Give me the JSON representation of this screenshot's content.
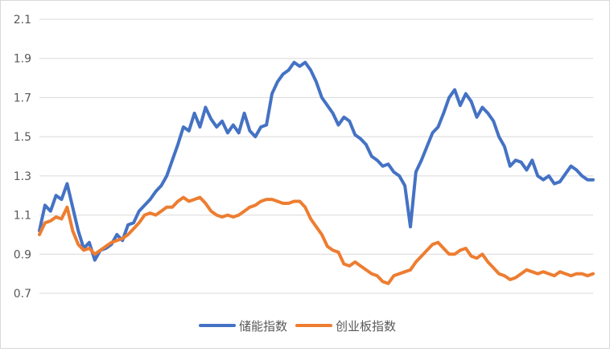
{
  "chart_data": {
    "type": "line",
    "title": "",
    "xlabel": "",
    "ylabel": "",
    "ylim": [
      0.7,
      2.1
    ],
    "yticks": [
      "0.7",
      "0.9",
      "1.1",
      "1.3",
      "1.5",
      "1.7",
      "1.9",
      "2.1"
    ],
    "grid": true,
    "legend_position": "bottom",
    "x": [
      0,
      1,
      2,
      3,
      4,
      5,
      6,
      7,
      8,
      9,
      10,
      11,
      12,
      13,
      14,
      15,
      16,
      17,
      18,
      19,
      20,
      21,
      22,
      23,
      24,
      25,
      26,
      27,
      28,
      29,
      30,
      31,
      32,
      33,
      34,
      35,
      36,
      37,
      38,
      39,
      40,
      41,
      42,
      43,
      44,
      45,
      46,
      47,
      48,
      49,
      50,
      51,
      52,
      53,
      54,
      55,
      56,
      57,
      58,
      59,
      60,
      61,
      62,
      63,
      64,
      65,
      66,
      67,
      68,
      69,
      70,
      71,
      72,
      73,
      74,
      75,
      76,
      77,
      78,
      79,
      80,
      81,
      82,
      83,
      84,
      85,
      86,
      87,
      88,
      89,
      90,
      91,
      92,
      93,
      94,
      95,
      96,
      97,
      98,
      99,
      100
    ],
    "series": [
      {
        "name": "储能指数",
        "color": "#4472c4",
        "values": [
          1.02,
          1.15,
          1.12,
          1.2,
          1.18,
          1.26,
          1.14,
          1.02,
          0.93,
          0.96,
          0.87,
          0.92,
          0.93,
          0.95,
          1.0,
          0.97,
          1.05,
          1.06,
          1.12,
          1.15,
          1.18,
          1.22,
          1.25,
          1.3,
          1.38,
          1.46,
          1.55,
          1.53,
          1.62,
          1.55,
          1.65,
          1.59,
          1.55,
          1.58,
          1.52,
          1.56,
          1.52,
          1.62,
          1.53,
          1.5,
          1.55,
          1.56,
          1.72,
          1.78,
          1.82,
          1.84,
          1.88,
          1.86,
          1.88,
          1.84,
          1.78,
          1.7,
          1.66,
          1.62,
          1.56,
          1.6,
          1.58,
          1.51,
          1.49,
          1.46,
          1.4,
          1.38,
          1.35,
          1.36,
          1.32,
          1.3,
          1.25,
          1.04,
          1.32,
          1.38,
          1.45,
          1.52,
          1.55,
          1.62,
          1.7,
          1.74,
          1.66,
          1.72,
          1.68,
          1.6,
          1.65,
          1.62,
          1.58,
          1.5,
          1.45,
          1.35,
          1.38,
          1.37,
          1.33,
          1.38,
          1.3,
          1.28,
          1.3,
          1.26,
          1.27,
          1.31,
          1.35,
          1.33,
          1.3,
          1.28,
          1.28
        ]
      },
      {
        "name": "创业板指数",
        "color": "#ed7d31",
        "values": [
          1.0,
          1.06,
          1.07,
          1.09,
          1.08,
          1.14,
          1.02,
          0.95,
          0.92,
          0.93,
          0.9,
          0.92,
          0.94,
          0.96,
          0.97,
          0.98,
          1.0,
          1.03,
          1.06,
          1.1,
          1.11,
          1.1,
          1.12,
          1.14,
          1.14,
          1.17,
          1.19,
          1.17,
          1.18,
          1.19,
          1.16,
          1.12,
          1.1,
          1.09,
          1.1,
          1.09,
          1.1,
          1.12,
          1.14,
          1.15,
          1.17,
          1.18,
          1.18,
          1.17,
          1.16,
          1.16,
          1.17,
          1.17,
          1.14,
          1.08,
          1.04,
          1.0,
          0.94,
          0.92,
          0.91,
          0.85,
          0.84,
          0.86,
          0.84,
          0.82,
          0.8,
          0.79,
          0.76,
          0.75,
          0.79,
          0.8,
          0.81,
          0.82,
          0.86,
          0.89,
          0.92,
          0.95,
          0.96,
          0.93,
          0.9,
          0.9,
          0.92,
          0.93,
          0.89,
          0.88,
          0.9,
          0.86,
          0.83,
          0.8,
          0.79,
          0.77,
          0.78,
          0.8,
          0.82,
          0.81,
          0.8,
          0.81,
          0.8,
          0.79,
          0.81,
          0.8,
          0.79,
          0.8,
          0.8,
          0.79,
          0.8
        ]
      }
    ]
  }
}
